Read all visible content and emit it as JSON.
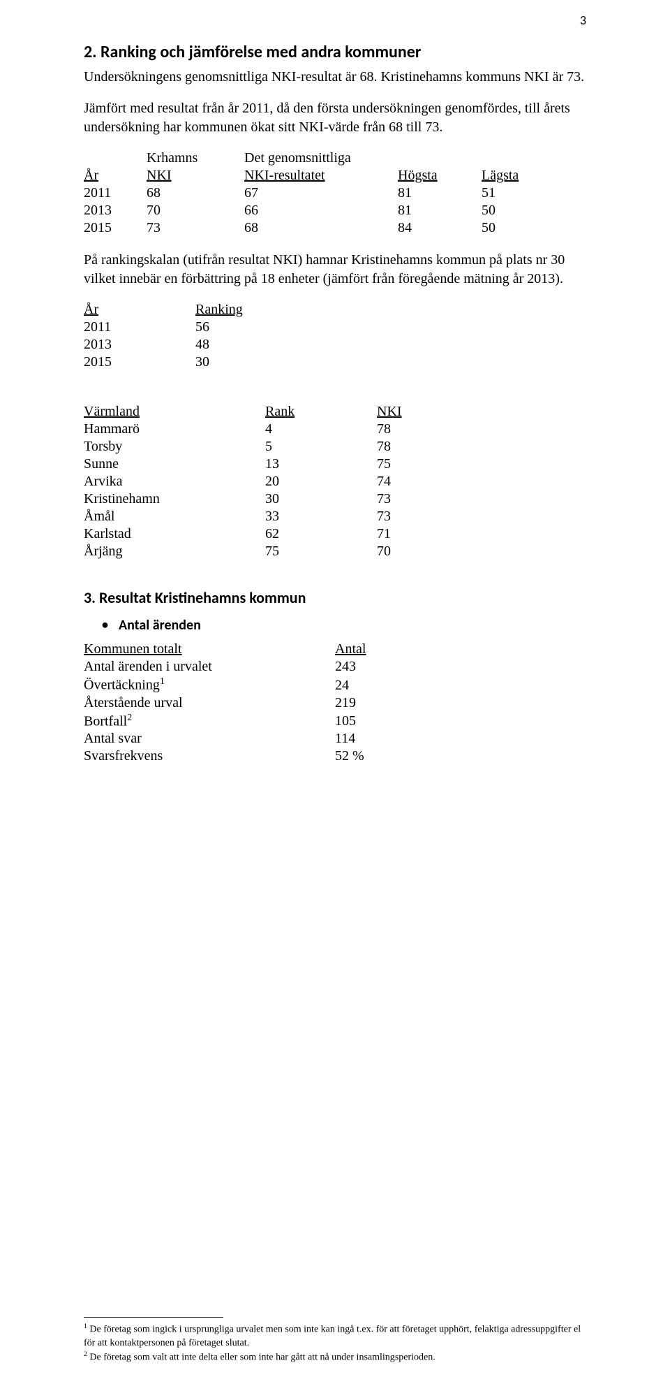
{
  "page_number": "3",
  "section2": {
    "heading": "2. Ranking och jämförelse med andra kommuner",
    "para1": "Undersökningens genomsnittliga NKI-resultat är 68. Kristinehamns kommuns NKI är 73.",
    "para2": "Jämfört med resultat från år 2011, då den första undersökningen genomfördes, till årets undersökning har kommunen ökat sitt NKI-värde från 68 till 73."
  },
  "table1": {
    "h_year": "År",
    "h_nki_top": "Krhamns",
    "h_nki_bot": "NKI",
    "h_res_top": "Det genomsnittliga",
    "h_res_bot": "NKI-resultatet",
    "h_high": "Högsta",
    "h_low": "Lägsta",
    "rows": [
      {
        "y": "2011",
        "n": "68",
        "r": "67",
        "h": "81",
        "l": "51"
      },
      {
        "y": "2013",
        "n": "70",
        "r": "66",
        "h": "81",
        "l": "50"
      },
      {
        "y": "2015",
        "n": "73",
        "r": "68",
        "h": "84",
        "l": "50"
      }
    ]
  },
  "para_ranking": "På rankingskalan (utifrån resultat NKI) hamnar Kristinehamns kommun på plats nr 30 vilket innebär en förbättring på 18 enheter (jämfört från föregående mätning år 2013).",
  "table2": {
    "h_year": "År",
    "h_rank": "Ranking",
    "rows": [
      {
        "y": "2011",
        "r": "56"
      },
      {
        "y": "2013",
        "r": "48"
      },
      {
        "y": "2015",
        "r": "30"
      }
    ]
  },
  "table3": {
    "h_vrm": "Värmland",
    "h_rank": "Rank",
    "h_nki": "NKI",
    "rows": [
      {
        "n": "Hammarö",
        "r": "4",
        "k": "78",
        "b": false
      },
      {
        "n": "Torsby",
        "r": "5",
        "k": "78",
        "b": false
      },
      {
        "n": "Sunne",
        "r": "13",
        "k": "75",
        "b": false
      },
      {
        "n": "Arvika",
        "r": "20",
        "k": "74",
        "b": false
      },
      {
        "n": "Kristinehamn",
        "r": "30",
        "k": "73",
        "b": true
      },
      {
        "n": "Åmål",
        "r": "33",
        "k": "73",
        "b": false
      },
      {
        "n": "Karlstad",
        "r": "62",
        "k": "71",
        "b": false
      },
      {
        "n": "Årjäng",
        "r": "75",
        "k": "70",
        "b": false
      }
    ]
  },
  "section3": {
    "heading": "3. Resultat Kristinehamns kommun",
    "bullet": "Antal ärenden"
  },
  "table4": {
    "h_kom": "Kommunen totalt",
    "h_ant": "Antal",
    "rows": [
      {
        "n": "Antal ärenden i urvalet",
        "v": "243",
        "b": false,
        "sup": ""
      },
      {
        "n": "Övertäckning",
        "v": " 24",
        "b": false,
        "sup": "1"
      },
      {
        "n": "Återstående urval",
        "v": "219",
        "b": false,
        "sup": ""
      },
      {
        "n": "Bortfall",
        "v": "105",
        "b": false,
        "sup": "2"
      },
      {
        "n": "Antal svar",
        "v": "114",
        "b": false,
        "sup": ""
      },
      {
        "n": "Svarsfrekvens",
        "v": "52 %",
        "b": true,
        "sup": ""
      }
    ]
  },
  "footnotes": {
    "f1_sup": "1",
    "f1": " De företag som ingick i ursprungliga urvalet men som inte kan ingå t.ex. för att företaget upphört, felaktiga adressuppgifter el för att kontaktpersonen på företaget slutat.",
    "f2_sup": "2",
    "f2": " De företag som valt att inte delta eller som inte har gått att nå under insamlingsperioden."
  }
}
